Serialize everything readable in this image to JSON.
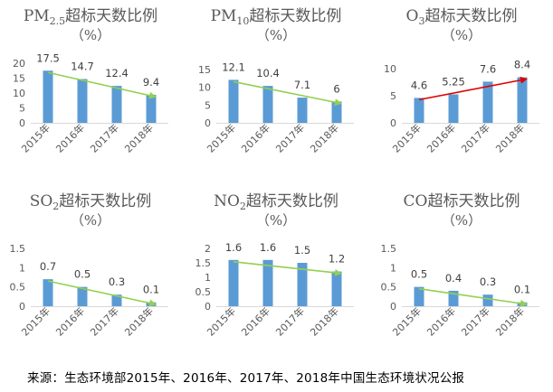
{
  "colors": {
    "bar": "#5B9BD5",
    "trend_green": "#92D050",
    "trend_red": "#E00000",
    "axis": "#D9D9D9",
    "text": "#595959"
  },
  "chart_data": [
    {
      "type": "bar",
      "title_main": "PM",
      "title_sub": "2.5",
      "title_rest": "超标天数比例",
      "unit": "（%）",
      "categories": [
        "2015年",
        "2016年",
        "2017年",
        "2018年"
      ],
      "values": [
        17.5,
        14.7,
        12.4,
        9.4
      ],
      "labels": [
        "17.5",
        "14.7",
        "12.4",
        "9.4"
      ],
      "ylim": [
        0,
        20
      ],
      "yticks": [
        "0",
        "5",
        "10",
        "15",
        "20"
      ],
      "trend": "down"
    },
    {
      "type": "bar",
      "title_main": "PM",
      "title_sub": "10",
      "title_rest": "超标天数比例",
      "unit": "（%）",
      "categories": [
        "2015年",
        "2016年",
        "2017年",
        "2018年"
      ],
      "values": [
        12.1,
        10.4,
        7.1,
        6
      ],
      "labels": [
        "12.1",
        "10.4",
        "7.1",
        "6"
      ],
      "ylim": [
        0,
        15
      ],
      "yticks": [
        "0",
        "5",
        "10",
        "15"
      ],
      "trend": "down"
    },
    {
      "type": "bar",
      "title_main": "O",
      "title_sub": "3",
      "title_rest": "超标天数比例",
      "unit": "（%）",
      "categories": [
        "2015年",
        "2016年",
        "2017年",
        "2018年"
      ],
      "values": [
        4.6,
        5.25,
        7.6,
        8.4
      ],
      "labels": [
        "4.6",
        "5.25",
        "7.6",
        "8.4"
      ],
      "ylim": [
        0,
        10
      ],
      "yticks": [
        "0",
        "5",
        "10"
      ],
      "trend": "up"
    },
    {
      "type": "bar",
      "title_main": "SO",
      "title_sub": "2",
      "title_rest": "超标天数比例",
      "unit": "（%）",
      "categories": [
        "2015年",
        "2016年",
        "2017年",
        "2018年"
      ],
      "values": [
        0.7,
        0.5,
        0.3,
        0.1
      ],
      "labels": [
        "0.7",
        "0.5",
        "0.3",
        "0.1"
      ],
      "ylim": [
        0,
        1.5
      ],
      "yticks": [
        "0",
        "0.5",
        "1",
        "1.5"
      ],
      "trend": "down"
    },
    {
      "type": "bar",
      "title_main": "NO",
      "title_sub": "2",
      "title_rest": "超标天数比例",
      "unit": "（%）",
      "categories": [
        "2015年",
        "2016年",
        "2017年",
        "2018年"
      ],
      "values": [
        1.6,
        1.6,
        1.5,
        1.2
      ],
      "labels": [
        "1.6",
        "1.6",
        "1.5",
        "1.2"
      ],
      "ylim": [
        0,
        2
      ],
      "yticks": [
        "0",
        "0.5",
        "1",
        "1.5",
        "2"
      ],
      "trend": "down"
    },
    {
      "type": "bar",
      "title_main": "CO",
      "title_sub": "",
      "title_rest": "超标天数比例",
      "unit": "（%）",
      "categories": [
        "2015年",
        "2016年",
        "2017年",
        "2018年"
      ],
      "values": [
        0.5,
        0.4,
        0.3,
        0.1
      ],
      "labels": [
        "0.5",
        "0.4",
        "0.3",
        "0.1"
      ],
      "ylim": [
        0,
        1.5
      ],
      "yticks": [
        "0",
        "0.5",
        "1",
        "1.5"
      ],
      "trend": "down"
    }
  ],
  "source": "来源：生态环境部2015年、2016年、2017年、2018年中国生态环境状况公报"
}
